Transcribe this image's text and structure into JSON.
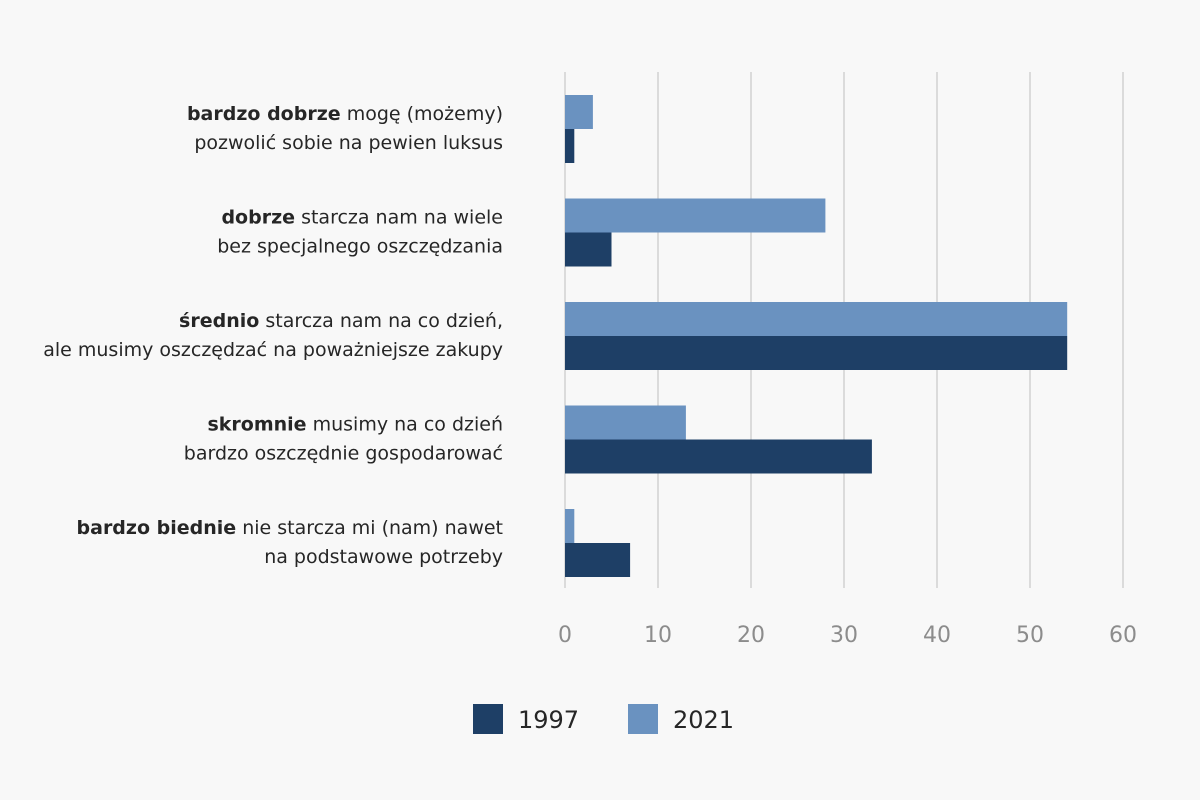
{
  "chart_data": {
    "type": "bar",
    "orientation": "horizontal",
    "categories": [
      {
        "bold": "bardzo dobrze",
        "rest": " mogę (możemy)",
        "line2": "pozwolić sobie na pewien luksus"
      },
      {
        "bold": "dobrze",
        "rest": " starcza nam na wiele",
        "line2": "bez specjalnego oszczędzania"
      },
      {
        "bold": "średnio",
        "rest": " starcza nam na co dzień,",
        "line2": "ale musimy oszczędzać na poważniejsze zakupy"
      },
      {
        "bold": "skromnie",
        "rest": " musimy na co dzień",
        "line2": "bardzo oszczędnie gospodarować"
      },
      {
        "bold": "bardzo biednie",
        "rest": " nie starcza mi (nam) nawet",
        "line2": "na podstawowe potrzeby"
      }
    ],
    "series": [
      {
        "name": "1997",
        "color": "#1e3f66",
        "values": [
          1,
          5,
          54,
          33,
          7
        ]
      },
      {
        "name": "2021",
        "color": "#6a92c0",
        "values": [
          3,
          28,
          54,
          13,
          1
        ]
      }
    ],
    "xlim": [
      0,
      60
    ],
    "xticks": [
      0,
      10,
      20,
      30,
      40,
      50,
      60
    ],
    "grid": true,
    "legend_position": "bottom",
    "title": "",
    "xlabel": "",
    "ylabel": ""
  }
}
